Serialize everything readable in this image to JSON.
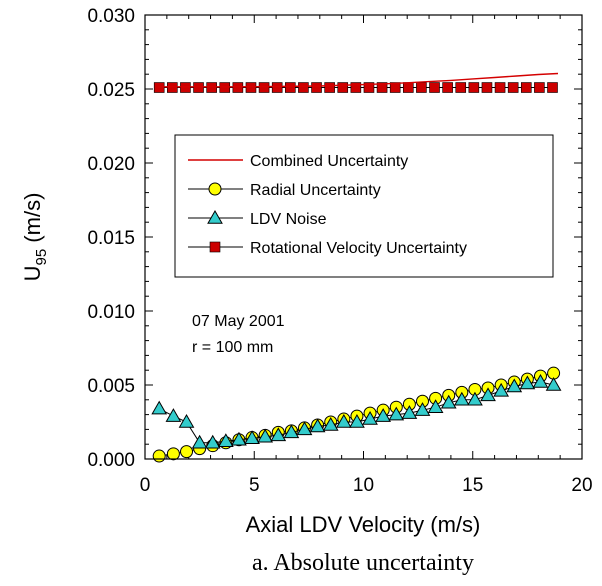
{
  "chart_data": {
    "type": "line",
    "title": "",
    "xlabel": "Axial LDV Velocity (m/s)",
    "ylabel_main": "U",
    "ylabel_sub": "95",
    "ylabel_unit": " (m/s)",
    "xlim": [
      0,
      20
    ],
    "ylim": [
      0,
      0.03
    ],
    "x_ticks": [
      0,
      5,
      10,
      15,
      20
    ],
    "x_tick_labels": [
      "0",
      "5",
      "10",
      "15",
      "20"
    ],
    "y_ticks": [
      0,
      0.005,
      0.01,
      0.015,
      0.02,
      0.025,
      0.03
    ],
    "y_tick_labels": [
      "0.000",
      "0.005",
      "0.010",
      "0.015",
      "0.020",
      "0.025",
      "0.030"
    ],
    "grid": false,
    "legend_position": "center-right inside plot",
    "annotations": [
      "07 May 2001",
      "r = 100 mm"
    ],
    "caption": "a. Absolute uncertainty",
    "series": [
      {
        "name": "Combined Uncertainty",
        "marker": "none",
        "color": "#d40000",
        "x": [
          0.6,
          2,
          4,
          6,
          8,
          10,
          11,
          12,
          13,
          14,
          15,
          16,
          17,
          18,
          18.9
        ],
        "y": [
          0.02515,
          0.02515,
          0.02515,
          0.02517,
          0.0252,
          0.0253,
          0.02535,
          0.02542,
          0.0255,
          0.02558,
          0.02568,
          0.02578,
          0.02588,
          0.02598,
          0.02605
        ]
      },
      {
        "name": "Radial Uncertainty",
        "marker": "circle",
        "color": "#ffff00",
        "x": [
          0.65,
          1.3,
          1.9,
          2.5,
          3.1,
          3.7,
          4.3,
          4.9,
          5.5,
          6.1,
          6.7,
          7.3,
          7.9,
          8.5,
          9.1,
          9.7,
          10.3,
          10.9,
          11.5,
          12.1,
          12.7,
          13.3,
          13.9,
          14.5,
          15.1,
          15.7,
          16.3,
          16.9,
          17.5,
          18.1,
          18.7
        ],
        "y": [
          0.0002,
          0.00035,
          0.0005,
          0.0007,
          0.0009,
          0.0011,
          0.0013,
          0.00145,
          0.0016,
          0.0018,
          0.0019,
          0.0021,
          0.0023,
          0.0025,
          0.0027,
          0.0029,
          0.0031,
          0.0033,
          0.0035,
          0.0037,
          0.0039,
          0.0041,
          0.0043,
          0.0045,
          0.0047,
          0.0048,
          0.005,
          0.0052,
          0.0054,
          0.0056,
          0.0058
        ]
      },
      {
        "name": "LDV Noise",
        "marker": "triangle",
        "color": "#33cccc",
        "x": [
          0.65,
          1.3,
          1.9,
          2.5,
          3.1,
          3.7,
          4.3,
          4.9,
          5.5,
          6.1,
          6.7,
          7.3,
          7.9,
          8.5,
          9.1,
          9.7,
          10.3,
          10.9,
          11.5,
          12.1,
          12.7,
          13.3,
          13.9,
          14.5,
          15.1,
          15.7,
          16.3,
          16.9,
          17.5,
          18.1,
          18.7
        ],
        "y": [
          0.0034,
          0.0029,
          0.0025,
          0.0011,
          0.0011,
          0.0012,
          0.0013,
          0.0014,
          0.0015,
          0.0016,
          0.0018,
          0.002,
          0.0022,
          0.0023,
          0.0025,
          0.0025,
          0.0027,
          0.0029,
          0.003,
          0.0031,
          0.0033,
          0.0035,
          0.0038,
          0.004,
          0.004,
          0.0043,
          0.0046,
          0.0049,
          0.0051,
          0.0052,
          0.005
        ]
      },
      {
        "name": "Rotational Velocity Uncertainty",
        "marker": "square",
        "color": "#cc0000",
        "x": [
          0.65,
          1.25,
          1.85,
          2.45,
          3.05,
          3.65,
          4.25,
          4.85,
          5.45,
          6.05,
          6.65,
          7.25,
          7.85,
          8.45,
          9.05,
          9.65,
          10.25,
          10.85,
          11.45,
          12.05,
          12.65,
          13.25,
          13.85,
          14.45,
          15.05,
          15.65,
          16.25,
          16.85,
          17.45,
          18.05,
          18.65
        ],
        "y": [
          0.0251,
          0.0251,
          0.0251,
          0.0251,
          0.0251,
          0.0251,
          0.0251,
          0.0251,
          0.0251,
          0.0251,
          0.0251,
          0.0251,
          0.0251,
          0.0251,
          0.0251,
          0.0251,
          0.0251,
          0.0251,
          0.0251,
          0.0251,
          0.0251,
          0.0251,
          0.0251,
          0.0251,
          0.0251,
          0.0251,
          0.0251,
          0.0251,
          0.0251,
          0.0251,
          0.0251
        ]
      }
    ]
  }
}
